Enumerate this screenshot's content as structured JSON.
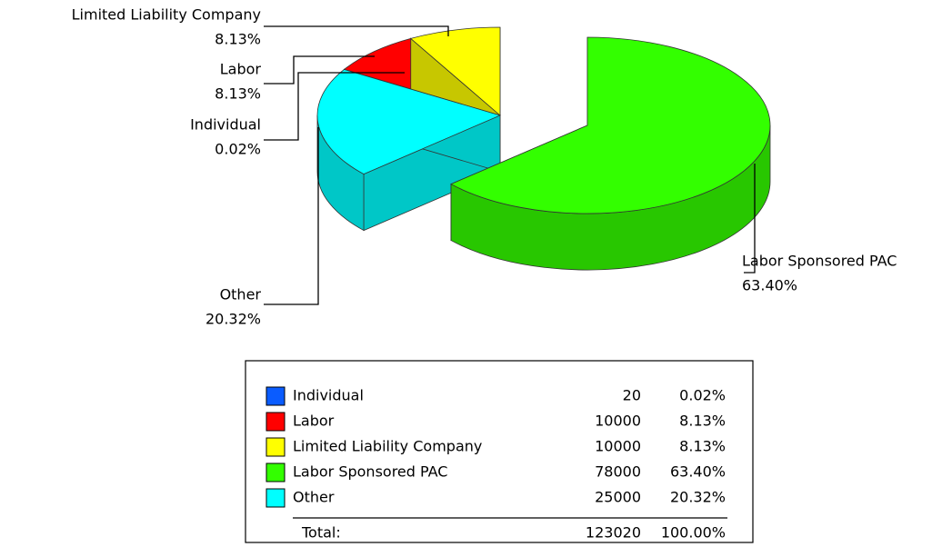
{
  "chart_data": {
    "type": "pie3d",
    "categories": [
      "Individual",
      "Labor",
      "Limited Liability Company",
      "Labor Sponsored PAC",
      "Other"
    ],
    "values": [
      20,
      10000,
      10000,
      78000,
      25000
    ],
    "percents": [
      0.02,
      8.13,
      8.13,
      63.4,
      20.32
    ],
    "percent_labels": [
      "0.02%",
      "8.13%",
      "8.13%",
      "63.40%",
      "20.32%"
    ],
    "colors": [
      "#0a5cff",
      "#ff0000",
      "#ffff00",
      "#33ff00",
      "#00ffff"
    ],
    "total_label": "Total:",
    "total": 123020,
    "total_percent": 100,
    "total_percent_label": "100.00%"
  }
}
